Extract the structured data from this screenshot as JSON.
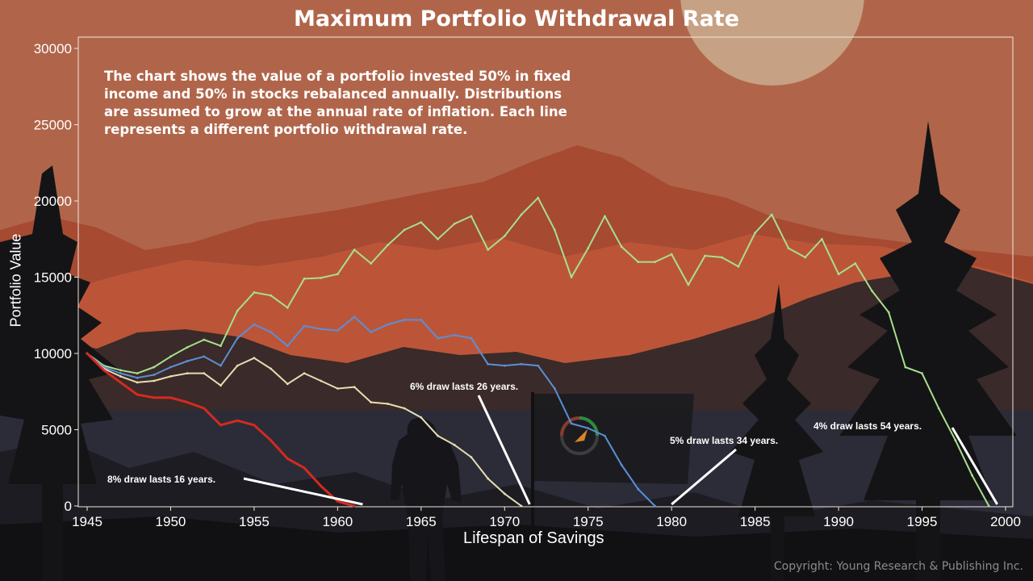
{
  "page": {
    "title": "Maximum Portfolio Withdrawal Rate",
    "description": "The chart shows the value of a portfolio invested 50% in fixed income and 50% in stocks rebalanced annually. Distributions are assumed to grow at the annual rate of inflation. Each line represents a different portfolio withdrawal rate.",
    "copyright": "Copyright: Young Research & Publishing Inc."
  },
  "chart_data": {
    "type": "line",
    "title": "Maximum Portfolio Withdrawal Rate",
    "xlabel": "Lifespan of Savings",
    "ylabel": "Portfolio Value",
    "xlim": [
      1945,
      2000
    ],
    "ylim": [
      0,
      30000
    ],
    "x_ticks": [
      "1945",
      "1950",
      "1955",
      "1960",
      "1965",
      "1970",
      "1975",
      "1980",
      "1985",
      "1990",
      "1995",
      "2000"
    ],
    "y_ticks": [
      "0",
      "5000",
      "10000",
      "15000",
      "20000",
      "25000",
      "30000"
    ],
    "grid": false,
    "series": [
      {
        "id": "4pct",
        "color": "#a6e08c",
        "x": [
          1945,
          1946,
          1947,
          1948,
          1949,
          1950,
          1951,
          1952,
          1953,
          1954,
          1955,
          1956,
          1957,
          1958,
          1959,
          1960,
          1961,
          1962,
          1963,
          1964,
          1965,
          1966,
          1967,
          1968,
          1969,
          1970,
          1971,
          1972,
          1973,
          1974,
          1975,
          1976,
          1977,
          1978,
          1979,
          1980,
          1981,
          1982,
          1983,
          1984,
          1985,
          1986,
          1987,
          1988,
          1989,
          1990,
          1991,
          1992,
          1993,
          1994,
          1995,
          1996,
          1997,
          1998,
          1999
        ],
        "values": [
          10000,
          9200,
          8900,
          8700,
          9100,
          9800,
          10400,
          10900,
          10500,
          12800,
          14000,
          13800,
          13000,
          14900,
          14950,
          15200,
          16800,
          15900,
          17100,
          18100,
          18600,
          17500,
          18500,
          19000,
          16800,
          17700,
          19100,
          20200,
          18100,
          15000,
          16900,
          19000,
          17000,
          16000,
          16000,
          16500,
          14500,
          16400,
          16300,
          15700,
          17900,
          19100,
          16900,
          16300,
          17500,
          15200,
          15900,
          14100,
          12700,
          9100,
          8700,
          6400,
          4300,
          2000,
          0
        ]
      },
      {
        "id": "5pct",
        "color": "#5b8fd6",
        "x": [
          1945,
          1946,
          1947,
          1948,
          1949,
          1950,
          1951,
          1952,
          1953,
          1954,
          1955,
          1956,
          1957,
          1958,
          1959,
          1960,
          1961,
          1962,
          1963,
          1964,
          1965,
          1966,
          1967,
          1968,
          1969,
          1970,
          1971,
          1972,
          1973,
          1974,
          1975,
          1976,
          1977,
          1978,
          1979
        ],
        "values": [
          10000,
          9100,
          8700,
          8400,
          8600,
          9100,
          9500,
          9800,
          9200,
          11000,
          11900,
          11400,
          10500,
          11800,
          11600,
          11500,
          12400,
          11400,
          11900,
          12200,
          12200,
          11000,
          11200,
          11000,
          9300,
          9200,
          9300,
          9200,
          7700,
          5400,
          5100,
          4600,
          2700,
          1100,
          0
        ]
      },
      {
        "id": "6pct",
        "color": "#e8dcb2",
        "x": [
          1945,
          1946,
          1947,
          1948,
          1949,
          1950,
          1951,
          1952,
          1953,
          1954,
          1955,
          1956,
          1957,
          1958,
          1959,
          1960,
          1961,
          1962,
          1963,
          1964,
          1965,
          1966,
          1967,
          1968,
          1969,
          1970,
          1971
        ],
        "values": [
          10000,
          9000,
          8500,
          8100,
          8200,
          8500,
          8700,
          8700,
          7900,
          9200,
          9700,
          9000,
          8000,
          8700,
          8200,
          7700,
          7800,
          6800,
          6700,
          6400,
          5800,
          4600,
          4000,
          3200,
          1800,
          800,
          0
        ]
      },
      {
        "id": "8pct",
        "color": "#d42a20",
        "x": [
          1945,
          1946,
          1947,
          1948,
          1949,
          1950,
          1951,
          1952,
          1953,
          1954,
          1955,
          1956,
          1957,
          1958,
          1959,
          1960,
          1961
        ],
        "values": [
          10000,
          8900,
          8100,
          7300,
          7100,
          7100,
          6800,
          6400,
          5300,
          5600,
          5300,
          4300,
          3100,
          2500,
          1300,
          300,
          0
        ]
      }
    ],
    "annotations": [
      {
        "series_id": "8pct",
        "text": "8% draw lasts 16 years.",
        "to": [
          1961.5,
          0
        ]
      },
      {
        "series_id": "6pct",
        "text": "6% draw lasts 26 years.",
        "to": [
          1971.5,
          0
        ]
      },
      {
        "series_id": "5pct",
        "text": "5% draw lasts 34 years.",
        "to": [
          1980,
          0
        ]
      },
      {
        "series_id": "4pct",
        "text": "4% draw lasts 54 years.",
        "to": [
          1999.5,
          0
        ]
      }
    ]
  }
}
